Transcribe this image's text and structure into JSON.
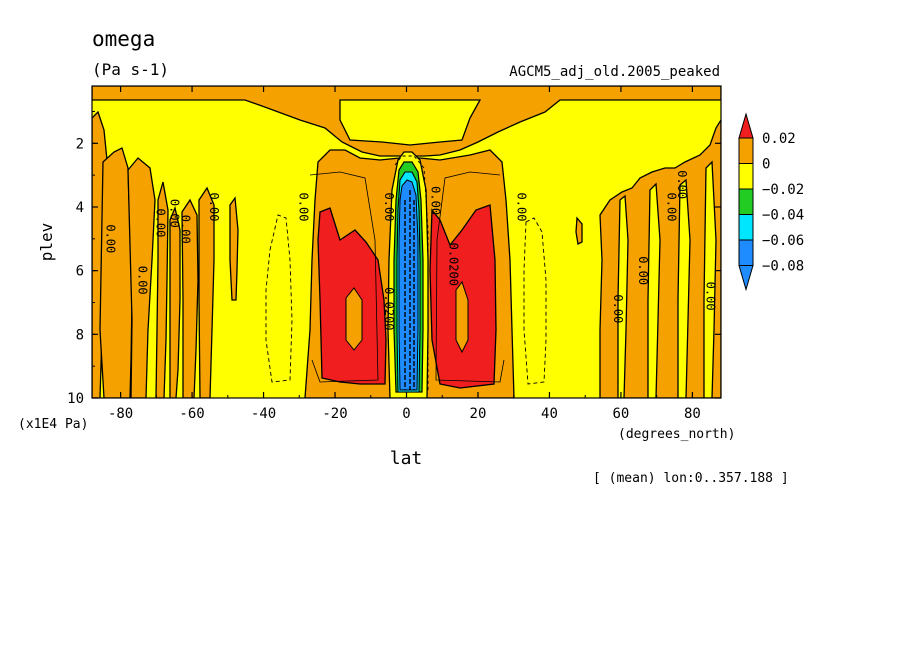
{
  "chart_data": {
    "type": "heatmap",
    "title": "omega",
    "units": "(Pa s-1)",
    "dataset": "AGCM5_adj_old.2005_peaked",
    "xlabel": "lat",
    "ylabel": "plev",
    "x_units": "(degrees_north)",
    "y_units": "(x1E4 Pa)",
    "footnote": "[ (mean) lon:0..357.188 ]",
    "xlim": [
      -88,
      88
    ],
    "ylim": [
      10,
      0.2
    ],
    "x_ticks": [
      "-80",
      "-60",
      "-40",
      "-20",
      "0",
      "20",
      "40",
      "60",
      "80"
    ],
    "x_tick_values": [
      -80,
      -60,
      -40,
      -20,
      0,
      20,
      40,
      60,
      80
    ],
    "y_ticks": [
      "2",
      "4",
      "6",
      "8",
      "10"
    ],
    "y_tick_values": [
      2,
      4,
      6,
      8,
      10
    ],
    "levels": [
      0.02,
      0,
      -0.02,
      -0.04,
      -0.06,
      -0.08
    ],
    "colorbar": [
      {
        "label": "0.02",
        "color": "#f01e1e"
      },
      {
        "label": "0",
        "color": "#f5a200"
      },
      {
        "label": "−0.02",
        "color": "#ffff00"
      },
      {
        "label": "−0.04",
        "color": "#22cc22"
      },
      {
        "label": "−0.06",
        "color": "#00e6ff"
      },
      {
        "label": "−0.08",
        "color": "#1e8cff"
      }
    ],
    "contour_labels": [
      {
        "text": "0.00",
        "lat": -84,
        "plev": 5.0
      },
      {
        "text": "0.00",
        "lat": -75,
        "plev": 6.3
      },
      {
        "text": "0.00",
        "lat": -70,
        "plev": 4.5
      },
      {
        "text": "0.00",
        "lat": -66,
        "plev": 4.2
      },
      {
        "text": "0.00",
        "lat": -63,
        "plev": 4.7
      },
      {
        "text": "0.00",
        "lat": -55,
        "plev": 4.0
      },
      {
        "text": "0.00",
        "lat": -30,
        "plev": 4.0
      },
      {
        "text": "0.00",
        "lat": -6,
        "plev": 4.0
      },
      {
        "text": "0.0200",
        "lat": -6,
        "plev": 7.2
      },
      {
        "text": "0.00",
        "lat": 7,
        "plev": 3.8
      },
      {
        "text": "0.0200",
        "lat": 12,
        "plev": 5.8
      },
      {
        "text": "0.00",
        "lat": 31,
        "plev": 4.0
      },
      {
        "text": "0.00",
        "lat": 58,
        "plev": 7.2
      },
      {
        "text": "0.00",
        "lat": 65,
        "plev": 6.0
      },
      {
        "text": "0.00",
        "lat": 73,
        "plev": 4.0
      },
      {
        "text": "0.00",
        "lat": 76,
        "plev": 3.3
      },
      {
        "text": "0.00",
        "lat": 84,
        "plev": 6.8
      }
    ]
  }
}
